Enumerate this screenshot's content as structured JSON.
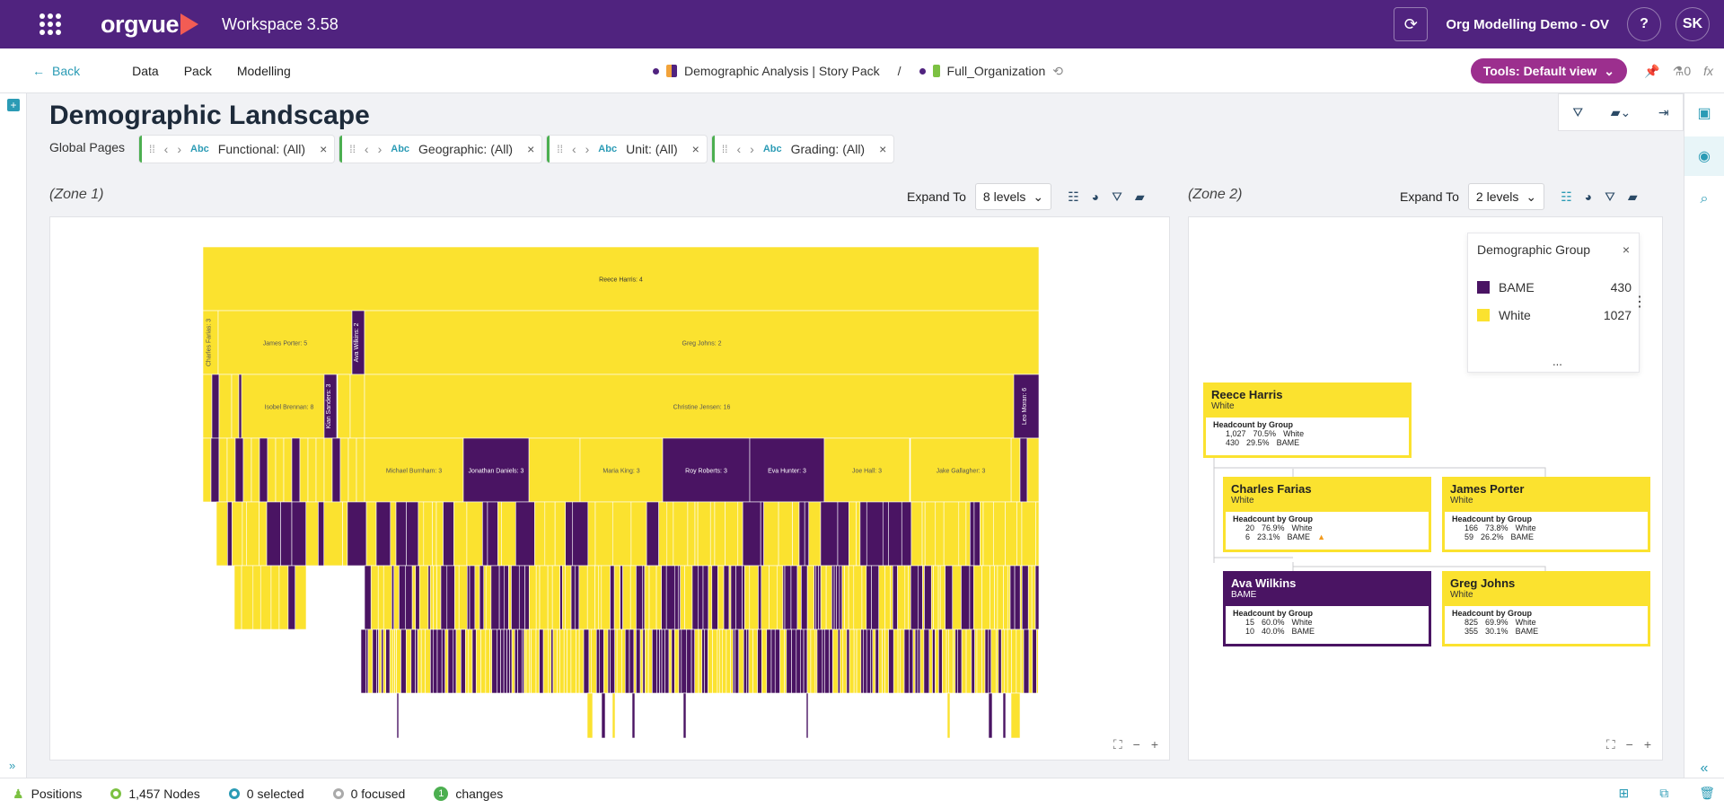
{
  "header": {
    "app_name": "orgvue",
    "workspace": "Workspace  3.58",
    "demo_name": "Org Modelling Demo - OV",
    "help": "?",
    "user_initials": "SK"
  },
  "nav": {
    "back": "Back",
    "links": [
      "Data",
      "Pack",
      "Modelling"
    ],
    "breadcrumb_pack": "Demographic Analysis | Story Pack",
    "breadcrumb_sep": "/",
    "breadcrumb_dataset": "Full_Organization",
    "tools": "Tools: Default view",
    "flask_count": "0",
    "fx": "fx"
  },
  "page": {
    "title": "Demographic Landscape",
    "global_pages": "Global Pages"
  },
  "filters": [
    {
      "type": "Abc",
      "label": "Functional: (All)"
    },
    {
      "type": "Abc",
      "label": "Geographic: (All)"
    },
    {
      "type": "Abc",
      "label": "Unit: (All)"
    },
    {
      "type": "Abc",
      "label": "Grading: (All)"
    }
  ],
  "zone1": {
    "label": "(Zone 1)",
    "expand_to": "Expand To",
    "levels": "8 levels"
  },
  "zone2": {
    "label": "(Zone 2)",
    "expand_to": "Expand To",
    "levels": "2 levels"
  },
  "colors": {
    "white": "#fbe22f",
    "bame": "#4a1463",
    "purple": "#50237f",
    "teal": "#2b9bb5"
  },
  "treemap": {
    "l1": "Reece Harris: 4",
    "l2": [
      {
        "label": "Charles Farias: 3",
        "c": "w"
      },
      {
        "label": "James Porter: 5",
        "c": "w"
      },
      {
        "label": "Ava Wilkins: 2",
        "c": "b"
      },
      {
        "label": "Greg Johns: 2",
        "c": "w"
      }
    ],
    "l3": [
      {
        "label": "Isobel Brennan: 8",
        "c": "w"
      },
      {
        "label": "Kian Sanders: 3",
        "c": "b"
      },
      {
        "label": "Christine Jensen: 16",
        "c": "w"
      },
      {
        "label": "Leo Moran: 6",
        "c": "b"
      }
    ],
    "l4": [
      {
        "label": "Michael Burnham: 3",
        "c": "w"
      },
      {
        "label": "Jonathan Daniels: 3",
        "c": "b"
      },
      {
        "label": "Maria King: 3",
        "c": "w"
      },
      {
        "label": "Roy Roberts: 3",
        "c": "b"
      },
      {
        "label": "Eva Hunter: 3",
        "c": "b"
      },
      {
        "label": "Joe Hall: 3",
        "c": "w"
      },
      {
        "label": "Jake Gallagher: 3",
        "c": "w"
      }
    ]
  },
  "legend": {
    "title": "Demographic Group",
    "items": [
      {
        "name": "BAME",
        "value": "430",
        "color": "#4a1463"
      },
      {
        "name": "White",
        "value": "1027",
        "color": "#fbe22f"
      }
    ],
    "more": "..."
  },
  "cards": [
    {
      "name": "Reece Harris",
      "group": "White",
      "hbg": "Headcount by Group",
      "r1": [
        "1,027",
        "70.5%",
        "White"
      ],
      "r2": [
        "430",
        "29.5%",
        "BAME"
      ]
    },
    {
      "name": "Charles Farias",
      "group": "White",
      "hbg": "Headcount by Group",
      "r1": [
        "20",
        "76.9%",
        "White"
      ],
      "r2": [
        "6",
        "23.1%",
        "BAME"
      ]
    },
    {
      "name": "James Porter",
      "group": "White",
      "hbg": "Headcount by Group",
      "r1": [
        "166",
        "73.8%",
        "White"
      ],
      "r2": [
        "59",
        "26.2%",
        "BAME"
      ]
    },
    {
      "name": "Ava Wilkins",
      "group": "BAME",
      "hbg": "Headcount by Group",
      "r1": [
        "15",
        "60.0%",
        "White"
      ],
      "r2": [
        "10",
        "40.0%",
        "BAME"
      ]
    },
    {
      "name": "Greg Johns",
      "group": "White",
      "hbg": "Headcount by Group",
      "r1": [
        "825",
        "69.9%",
        "White"
      ],
      "r2": [
        "355",
        "30.1%",
        "BAME"
      ]
    }
  ],
  "status": {
    "positions": "Positions",
    "nodes": "1,457 Nodes",
    "selected": "0 selected",
    "focused": "0 focused",
    "changes_count": "1",
    "changes": "changes"
  }
}
